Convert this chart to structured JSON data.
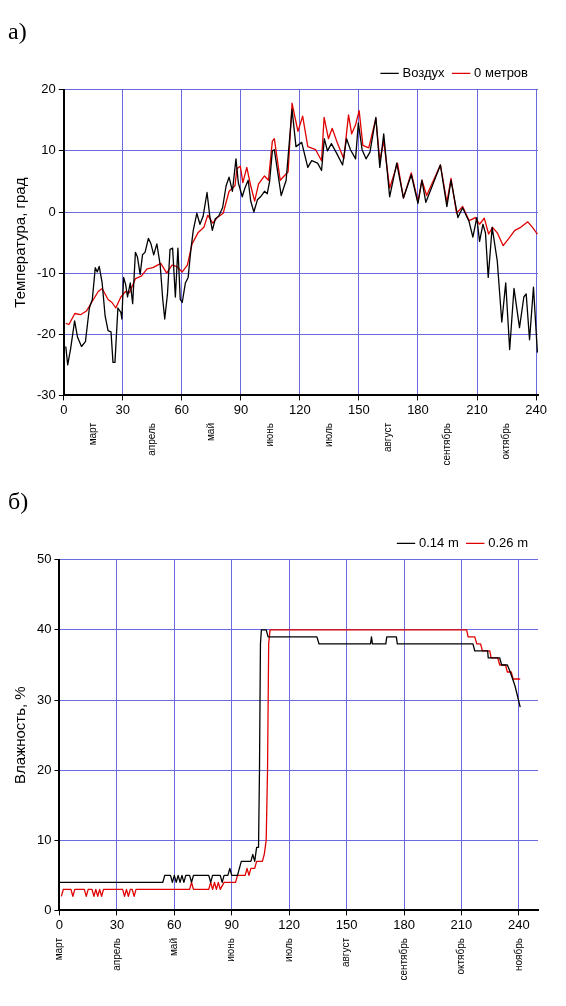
{
  "chart_data": [
    {
      "type": "line",
      "title": "а)",
      "ylabel": "Температура, град",
      "xlim": [
        0,
        241
      ],
      "xticks": [
        0,
        30,
        60,
        90,
        120,
        150,
        180,
        210,
        240
      ],
      "ylim": [
        -30,
        20
      ],
      "yticks": [
        -30,
        -20,
        -10,
        0,
        10,
        20
      ],
      "grid": true,
      "legend": "top right",
      "annotations": [
        "март",
        "апрель",
        "май",
        "июнь",
        "июль",
        "август",
        "сентябрь",
        "октябрь"
      ],
      "series": [
        {
          "name": "Воздух",
          "color": "#000000",
          "x": [
            1,
            2,
            3.5,
            5.5,
            7,
            9,
            11,
            13,
            14.5,
            16,
            17,
            18,
            19.5,
            21,
            22.5,
            24,
            25,
            26,
            27.5,
            29,
            29.5,
            30.4,
            31.4,
            32.4,
            33.8,
            35,
            36.4,
            37.4,
            38.8,
            40,
            41.3,
            43,
            44.3,
            45.7,
            47.3,
            49,
            50.3,
            51.3,
            52.7,
            54,
            55.3,
            56.7,
            58,
            59.2,
            60.2,
            61.8,
            63.2,
            64.6,
            65.8,
            67.6,
            69.2,
            70.8,
            72.8,
            74.2,
            75.5,
            77,
            78.7,
            80.7,
            82.5,
            84,
            85.7,
            87.5,
            88.7,
            90.7,
            92,
            93.7,
            95,
            96.6,
            98.4,
            100,
            102,
            103.4,
            104.6,
            106,
            107,
            110.5,
            113,
            116,
            118,
            120.9,
            124,
            126,
            129,
            131,
            132.4,
            134,
            136,
            138.7,
            141.7,
            143.7,
            145.7,
            148.3,
            149.7,
            151.6,
            153.6,
            155.6,
            158.6,
            160.6,
            162.6,
            165.6,
            169.2,
            172.6,
            176.6,
            180,
            182,
            184,
            186.8,
            191.4,
            194.7,
            196.8,
            200.3,
            202.7,
            206,
            207.9,
            209.9,
            211.3,
            213,
            214.3,
            215.7,
            217.7,
            220.3,
            222.6,
            224.6,
            226.6,
            228.8,
            231.6,
            233.8,
            235,
            236.7,
            238.7,
            240.7
          ],
          "values": [
            -22,
            -25,
            -22.3,
            -17.8,
            -20.5,
            -22,
            -21.2,
            -15.7,
            -14.3,
            -9.1,
            -9.8,
            -8.9,
            -11.6,
            -17,
            -19.4,
            -19.6,
            -24.6,
            -24.6,
            -15.7,
            -16.4,
            -17.5,
            -10.7,
            -11.8,
            -13.9,
            -11.6,
            -15,
            -6.6,
            -7.3,
            -10.2,
            -7,
            -6.6,
            -4.3,
            -5.2,
            -7,
            -5.2,
            -8.7,
            -14.3,
            -17.5,
            -13.4,
            -6.1,
            -5.9,
            -13.9,
            -5.9,
            -14.3,
            -14.8,
            -11.6,
            -10.7,
            -6.1,
            -3,
            -0.2,
            -2,
            -0.7,
            3.2,
            -0.7,
            -3,
            -1.1,
            -0.7,
            0.7,
            4.3,
            5.7,
            3.4,
            8.7,
            4.8,
            2.5,
            3.9,
            5.2,
            1.8,
            0,
            2,
            2.5,
            3.4,
            3,
            5,
            10,
            10.2,
            2.7,
            5.2,
            16.8,
            10.7,
            11.4,
            7.3,
            8.4,
            8,
            6.8,
            12,
            10,
            11.2,
            9.6,
            7.7,
            12,
            10.2,
            8.7,
            14.6,
            10.2,
            8.7,
            9.8,
            15.5,
            7.3,
            12.8,
            2.5,
            8,
            2.3,
            6.1,
            1.4,
            5.2,
            1.6,
            3.9,
            7.7,
            0.9,
            5.2,
            -0.9,
            0.7,
            -1.6,
            -4.1,
            -0.9,
            -4.8,
            -2,
            -3.4,
            -10.7,
            -2.5,
            -8,
            -18,
            -11.6,
            -22.5,
            -12.5,
            -18.9,
            -13.9,
            -13.4,
            -20.9,
            -12.3,
            -23
          ]
        },
        {
          "name": "0 метров",
          "color": "#e00000",
          "x": [
            1,
            2.6,
            5.6,
            8.5,
            11.5,
            14.5,
            17.5,
            19.5,
            22.5,
            24.5,
            26.4,
            29,
            31.4,
            33.4,
            36.4,
            39.4,
            42.3,
            45.3,
            49.3,
            52.3,
            55,
            57.3,
            60.2,
            62.8,
            65.2,
            68.2,
            71.2,
            73.2,
            75.7,
            78,
            81,
            84,
            87,
            88,
            89.7,
            91,
            93,
            95,
            97,
            99,
            102,
            104,
            106,
            107,
            110,
            114,
            116,
            119,
            121.4,
            124,
            128,
            131,
            132.3,
            134.5,
            136.4,
            138.7,
            142.3,
            144.7,
            146.3,
            148.3,
            150.1,
            152,
            155,
            158.6,
            160.6,
            162.6,
            165.6,
            169.6,
            172.6,
            176.6,
            180,
            182,
            184.4,
            191.4,
            194.7,
            196.8,
            199.6,
            202.7,
            206,
            209.2,
            211.3,
            213.7,
            215.9,
            217.9,
            220.3,
            223.3,
            226.2,
            229.2,
            232.2,
            235.8,
            238.2,
            240.7
          ],
          "values": [
            -18.2,
            -18.4,
            -16.6,
            -16.8,
            -16.2,
            -14.6,
            -13,
            -12.5,
            -14.3,
            -14.8,
            -15.7,
            -13.9,
            -13,
            -13.2,
            -10.9,
            -10.5,
            -9.3,
            -9.1,
            -8.4,
            -10,
            -8.7,
            -8.9,
            -9.8,
            -8.7,
            -5.2,
            -3.4,
            -2.5,
            -0.5,
            -1.8,
            -0.9,
            -0.2,
            3.4,
            4.3,
            7.1,
            7.5,
            4.8,
            7.3,
            4.3,
            1.8,
            4.6,
            5.9,
            5.2,
            11.6,
            12,
            5.2,
            6.6,
            17.8,
            13.2,
            15.7,
            10.7,
            10.2,
            8.4,
            15.5,
            12,
            13.7,
            11.6,
            8.7,
            15.9,
            12.8,
            14.3,
            16.6,
            10.9,
            10.5,
            15.3,
            8.4,
            11.6,
            3.9,
            8,
            2.3,
            6.4,
            1.7,
            5.2,
            2.7,
            7.7,
            1.6,
            5.5,
            -0.2,
            0.9,
            -1.4,
            -0.9,
            -2,
            -1,
            -3.6,
            -2.5,
            -3.4,
            -5.5,
            -4.3,
            -3,
            -2.5,
            -1.6,
            -2.5,
            -3.6
          ]
        }
      ]
    },
    {
      "type": "line",
      "title": "б)",
      "ylabel": "Влажность, %",
      "xlim": [
        0,
        250
      ],
      "xticks": [
        0,
        30,
        60,
        90,
        120,
        150,
        180,
        210,
        240
      ],
      "ylim": [
        0,
        50
      ],
      "yticks": [
        0,
        10,
        20,
        30,
        40,
        50
      ],
      "grid": true,
      "legend": "top right",
      "annotations": [
        "март",
        "апрель",
        "май",
        "июнь",
        "июль",
        "август",
        "сентябрь",
        "октябрь",
        "ноябрь"
      ],
      "series": [
        {
          "name": "0.14 m",
          "color": "#000000",
          "x": [
            0,
            54,
            55,
            58,
            59,
            60,
            61,
            62,
            63,
            64,
            65,
            66,
            68,
            69,
            70,
            78,
            79,
            80,
            84,
            85,
            86,
            88,
            89,
            90,
            93,
            94,
            95,
            100,
            101,
            102,
            103,
            104,
            104.5,
            105,
            105.5,
            108,
            109,
            134.5,
            135.6,
            162.5,
            163,
            163.5,
            170.5,
            171,
            176,
            176.5,
            216,
            217,
            223.7,
            224,
            230,
            231,
            234,
            235.5,
            238,
            240.7
          ],
          "values": [
            4,
            4,
            5,
            5,
            4,
            5,
            4,
            5,
            4,
            5,
            4,
            5,
            5,
            4,
            5,
            5,
            4,
            5,
            5,
            4,
            5,
            5,
            6,
            5,
            5,
            6,
            7,
            7,
            8,
            7,
            9,
            9,
            20,
            38,
            40,
            40,
            39,
            39,
            38,
            38,
            39,
            38,
            38,
            39,
            39,
            38,
            38,
            37,
            37,
            36,
            36,
            35,
            35,
            34,
            32,
            29
          ]
        },
        {
          "name": "0.26 m",
          "color": "#e00000",
          "x": [
            1,
            2,
            6,
            7,
            8,
            13,
            14,
            15,
            17,
            18,
            19,
            20,
            21,
            22,
            23,
            33,
            34,
            35,
            36,
            37,
            38,
            39,
            40,
            68,
            69,
            70,
            78,
            79,
            80,
            81,
            82,
            83,
            84,
            86,
            92,
            93,
            97,
            98,
            99,
            100,
            102,
            103,
            106,
            107,
            108,
            108.7,
            109.3,
            110,
            212.7,
            213.5,
            217,
            218,
            220,
            221,
            224.8,
            225.5,
            229,
            230,
            233,
            234,
            236,
            237,
            240.7
          ],
          "values": [
            2,
            3,
            3,
            2,
            3,
            3,
            2,
            3,
            3,
            2,
            3,
            2,
            3,
            2,
            3,
            3,
            2,
            3,
            2,
            3,
            3,
            2,
            3,
            3,
            4,
            3,
            3,
            4,
            3,
            4,
            3,
            4,
            3,
            4,
            4,
            5,
            5,
            6,
            5,
            6,
            6,
            7,
            7,
            8,
            10,
            20,
            38,
            40,
            40,
            39,
            39,
            38,
            38,
            37,
            37,
            36,
            36,
            35,
            35,
            34,
            34,
            33,
            33
          ]
        }
      ]
    }
  ]
}
